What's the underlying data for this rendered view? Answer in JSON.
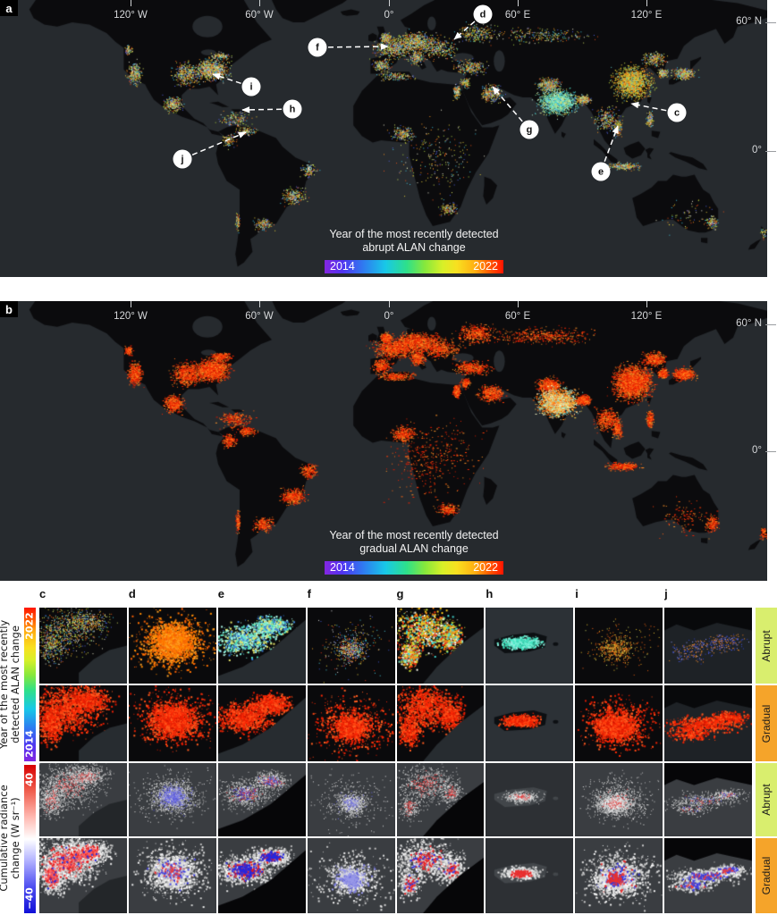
{
  "figure": {
    "panel_a": {
      "panel_label": "a",
      "top_axis_ticks": [
        "120° W",
        "60° W",
        "0°",
        "60° E",
        "120° E"
      ],
      "right_axis_ticks": [
        "60° N",
        "0°"
      ],
      "colorbar": {
        "title_line1": "Year of the most recently detected",
        "title_line2": "abrupt ALAN change",
        "min_label": "2014",
        "max_label": "2022"
      },
      "callout_labels": [
        "c",
        "d",
        "e",
        "f",
        "g",
        "h",
        "i",
        "j"
      ]
    },
    "panel_b": {
      "panel_label": "b",
      "top_axis_ticks": [
        "120° W",
        "60° W",
        "0°",
        "60° E",
        "120° E"
      ],
      "right_axis_ticks": [
        "60° N",
        "0°"
      ],
      "colorbar": {
        "title_line1": "Year of the most recently detected",
        "title_line2": "gradual ALAN change",
        "min_label": "2014",
        "max_label": "2022"
      }
    },
    "detail_grid": {
      "column_labels": [
        "c",
        "d",
        "e",
        "f",
        "g",
        "h",
        "i",
        "j"
      ],
      "row_labels": [
        "Abrupt",
        "Gradual",
        "Abrupt",
        "Gradual"
      ],
      "year_axis": {
        "label_line1": "Year of the most recently",
        "label_line2": "detected ALAN change",
        "top_label": "2022",
        "bottom_label": "2014"
      },
      "radiance_axis": {
        "label_line1": "Cumulative radiance",
        "label_line2": "change (W sr⁻¹)",
        "top_label": "40",
        "bottom_label": "−40"
      }
    },
    "colors": {
      "abrupt_row_bar": "#d9ee6e",
      "gradual_row_bar": "#f5a42a",
      "ocean": "#262a2e",
      "land": "#0b0b0d",
      "year_scale_min_color": "#8426e0",
      "year_scale_max_color": "#ff1400",
      "radiance_pos_color": "#d80000",
      "radiance_neg_color": "#1010d8"
    }
  }
}
